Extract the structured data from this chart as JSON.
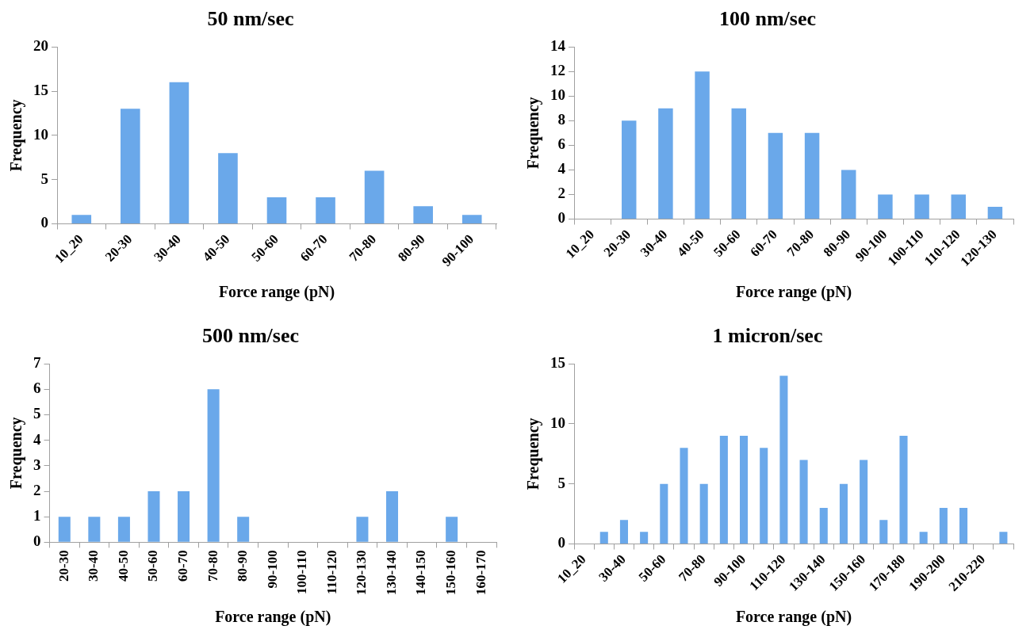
{
  "chart_data": [
    {
      "type": "bar",
      "title": "50 nm/sec",
      "xlabel": "Force range (pN)",
      "ylabel": "Frequency",
      "categories": [
        "10_20",
        "20-30",
        "30-40",
        "40-50",
        "50-60",
        "60-70",
        "70-80",
        "80-90",
        "90-100"
      ],
      "values": [
        1,
        13,
        16,
        8,
        3,
        3,
        6,
        2,
        1
      ],
      "color": "#6aa8ea",
      "ylim": [
        0,
        20
      ],
      "yticks": [
        0,
        5,
        10,
        15,
        20
      ],
      "grid": false
    },
    {
      "type": "bar",
      "title": "100 nm/sec",
      "xlabel": "Force range (pN)",
      "ylabel": "Frequency",
      "categories": [
        "10_20",
        "20-30",
        "30-40",
        "40-50",
        "50-60",
        "60-70",
        "70-80",
        "80-90",
        "90-100",
        "100-110",
        "110-120",
        "120-130"
      ],
      "values": [
        0,
        8,
        9,
        12,
        9,
        7,
        7,
        4,
        2,
        2,
        2,
        1
      ],
      "color": "#6aa8ea",
      "ylim": [
        0,
        14
      ],
      "yticks": [
        0,
        2,
        4,
        6,
        8,
        10,
        12,
        14
      ],
      "grid": false
    },
    {
      "type": "bar",
      "title": "500 nm/sec",
      "xlabel": "Force range (pN)",
      "ylabel": "Frequency",
      "categories": [
        "20-30",
        "30-40",
        "40-50",
        "50-60",
        "60-70",
        "70-80",
        "80-90",
        "90-100",
        "100-110",
        "110-120",
        "120-130",
        "130-140",
        "140-150",
        "150-160",
        "160-170"
      ],
      "values": [
        1,
        1,
        1,
        2,
        2,
        6,
        1,
        0,
        0,
        0,
        1,
        2,
        0,
        1,
        0
      ],
      "color": "#6aa8ea",
      "ylim": [
        0,
        7
      ],
      "yticks": [
        0,
        1,
        2,
        3,
        4,
        5,
        6,
        7
      ],
      "grid": false
    },
    {
      "type": "bar",
      "title": "1 micron/sec",
      "xlabel": "Force range (pN)",
      "ylabel": "Frequency",
      "categories": [
        "10_20",
        null,
        "30-40",
        null,
        "50-60",
        null,
        "70-80",
        null,
        "90-100",
        null,
        "110-120",
        null,
        "130-140",
        null,
        "150-160",
        null,
        "170-180",
        null,
        "190-200",
        null,
        "210-220",
        null
      ],
      "values": [
        0,
        1,
        2,
        1,
        5,
        8,
        5,
        9,
        9,
        8,
        14,
        7,
        3,
        5,
        7,
        2,
        9,
        1,
        3,
        3,
        0,
        1
      ],
      "color": "#6aa8ea",
      "ylim": [
        0,
        15
      ],
      "yticks": [
        0,
        5,
        10,
        15
      ],
      "grid": false
    }
  ]
}
